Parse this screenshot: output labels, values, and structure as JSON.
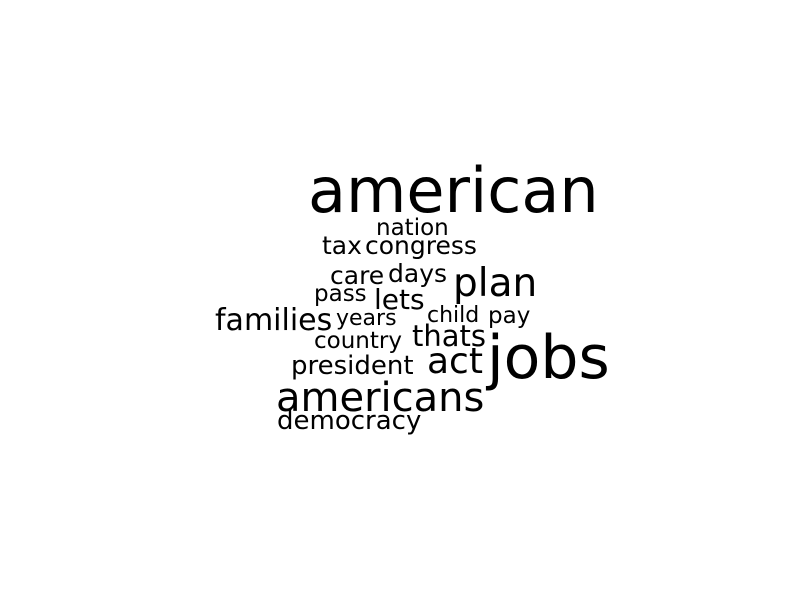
{
  "word_cloud": {
    "text_color": "#000000",
    "background_color": "#ffffff",
    "words": [
      {
        "text": "american",
        "weight": 1.0
      },
      {
        "text": "jobs",
        "weight": 0.95
      },
      {
        "text": "americans",
        "weight": 0.64
      },
      {
        "text": "plan",
        "weight": 0.62
      },
      {
        "text": "act",
        "weight": 0.58
      },
      {
        "text": "families",
        "weight": 0.48
      },
      {
        "text": "thats",
        "weight": 0.46
      },
      {
        "text": "lets",
        "weight": 0.44
      },
      {
        "text": "congress",
        "weight": 0.42
      },
      {
        "text": "tax",
        "weight": 0.42
      },
      {
        "text": "president",
        "weight": 0.42
      },
      {
        "text": "democracy",
        "weight": 0.42
      },
      {
        "text": "care",
        "weight": 0.42
      },
      {
        "text": "days",
        "weight": 0.42
      },
      {
        "text": "nation",
        "weight": 0.38
      },
      {
        "text": "pass",
        "weight": 0.38
      },
      {
        "text": "country",
        "weight": 0.38
      },
      {
        "text": "pay",
        "weight": 0.38
      },
      {
        "text": "child",
        "weight": 0.36
      },
      {
        "text": "years",
        "weight": 0.36
      }
    ]
  }
}
